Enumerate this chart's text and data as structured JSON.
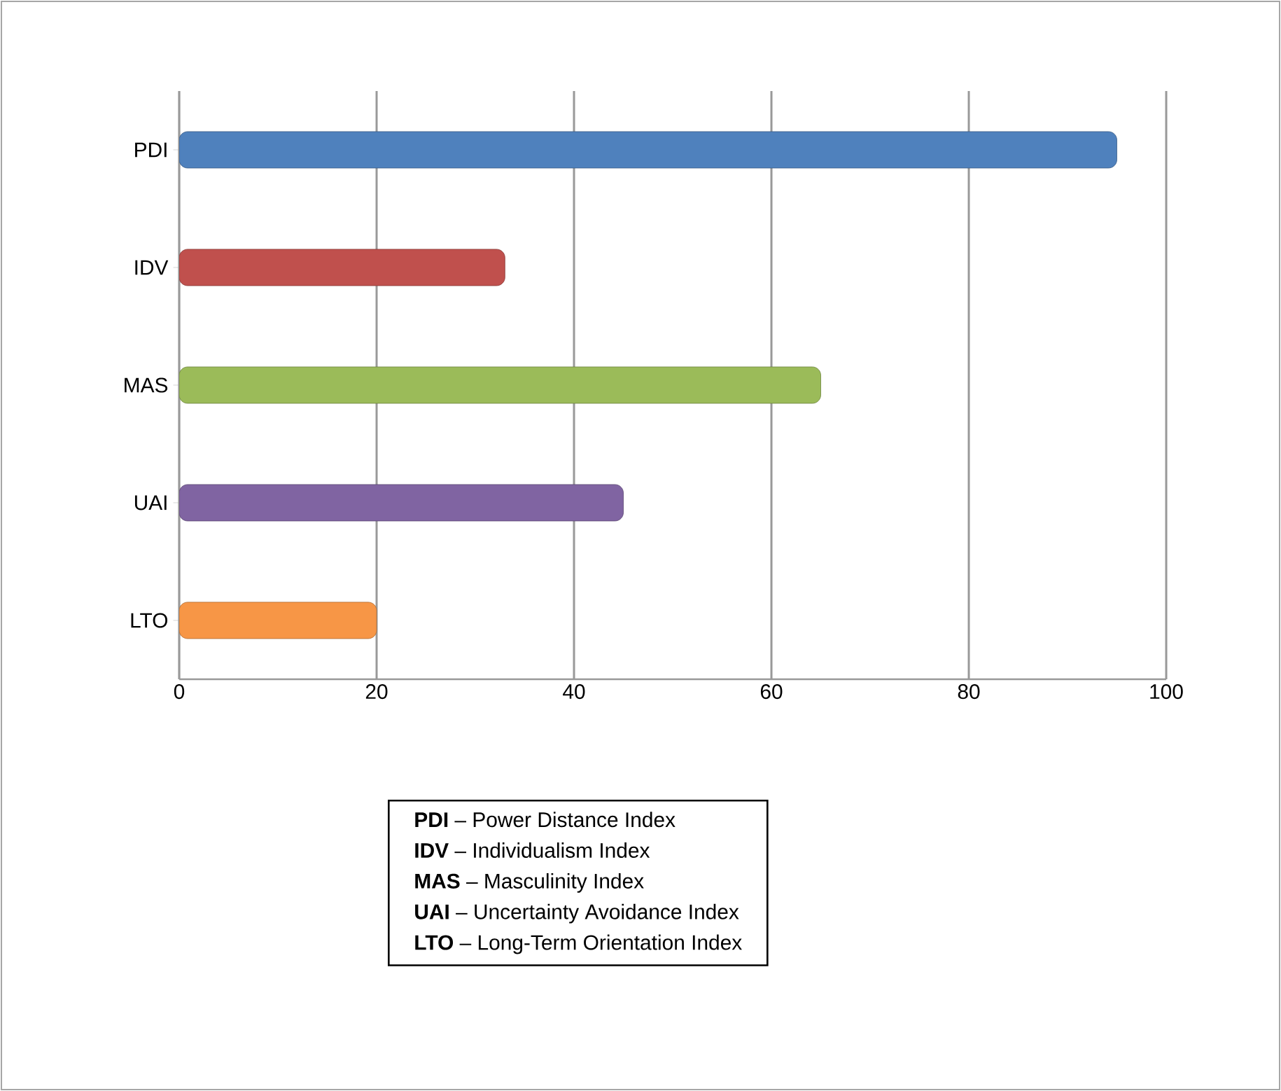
{
  "chart_data": {
    "type": "bar",
    "orientation": "horizontal",
    "categories": [
      "PDI",
      "IDV",
      "MAS",
      "UAI",
      "LTO"
    ],
    "values": [
      95,
      33,
      65,
      45,
      20
    ],
    "colors": [
      "#4f81bd",
      "#c0504d",
      "#9bbb59",
      "#8064a2",
      "#f79646"
    ],
    "xlim": [
      0,
      100
    ],
    "xticks": [
      0,
      20,
      40,
      60,
      80,
      100
    ],
    "grid": "x",
    "annotations": [
      "**PDI** – Power Distance Index",
      "**IDV** – Individualism Index",
      "**MAS** – Masculinity Index",
      "**UAI** – Uncertainty Avoidance Index",
      "**LTO** – Long-Term Orientation Index"
    ]
  }
}
